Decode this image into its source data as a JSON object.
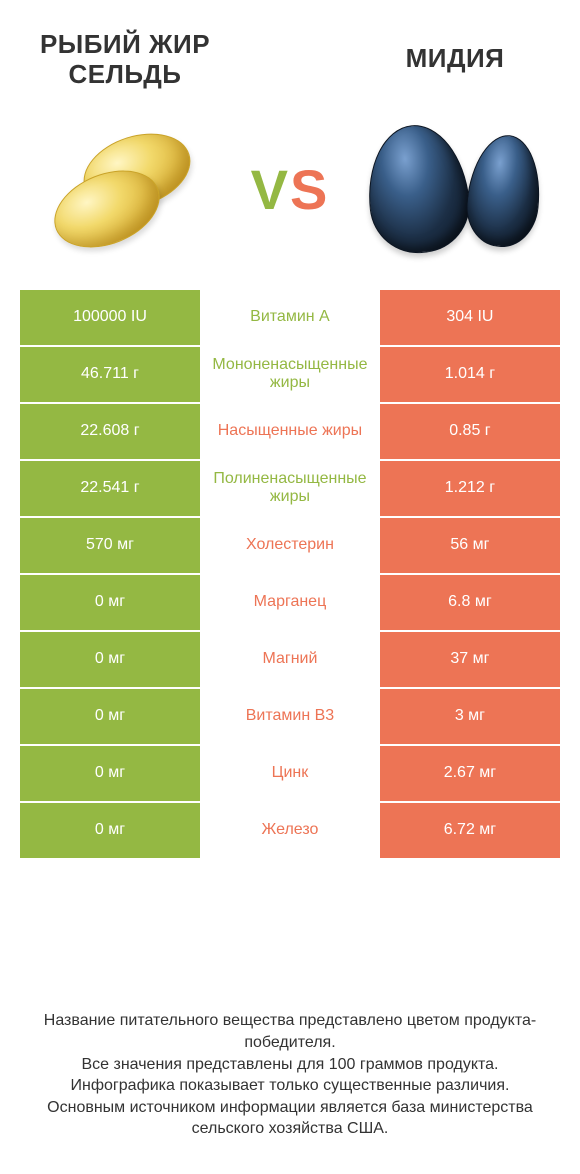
{
  "colors": {
    "green": "#94b843",
    "orange": "#ed7455",
    "text": "#333333",
    "white": "#ffffff"
  },
  "header": {
    "left_line1": "РЫБИЙ ЖИР",
    "left_line2": "СЕЛЬДЬ",
    "right": "МИДИЯ"
  },
  "vs": {
    "v": "V",
    "s": "S"
  },
  "rows": [
    {
      "left": "100000 IU",
      "name": "Витамин A",
      "right": "304 IU",
      "winner": "left"
    },
    {
      "left": "46.711 г",
      "name": "Мононенасыщенные жиры",
      "right": "1.014 г",
      "winner": "left"
    },
    {
      "left": "22.608 г",
      "name": "Насыщенные жиры",
      "right": "0.85 г",
      "winner": "right"
    },
    {
      "left": "22.541 г",
      "name": "Полиненасыщенные жиры",
      "right": "1.212 г",
      "winner": "left"
    },
    {
      "left": "570 мг",
      "name": "Холестерин",
      "right": "56 мг",
      "winner": "right"
    },
    {
      "left": "0 мг",
      "name": "Марганец",
      "right": "6.8 мг",
      "winner": "right"
    },
    {
      "left": "0 мг",
      "name": "Магний",
      "right": "37 мг",
      "winner": "right"
    },
    {
      "left": "0 мг",
      "name": "Витамин B3",
      "right": "3 мг",
      "winner": "right"
    },
    {
      "left": "0 мг",
      "name": "Цинк",
      "right": "2.67 мг",
      "winner": "right"
    },
    {
      "left": "0 мг",
      "name": "Железо",
      "right": "6.72 мг",
      "winner": "right"
    }
  ],
  "footer": {
    "l1": "Название питательного вещества представлено цветом продукта-победителя.",
    "l2": "Все значения представлены для 100 граммов продукта.",
    "l3": "Инфографика показывает только существенные различия.",
    "l4": "Основным источником информации является база министерства сельского хозяйства США."
  }
}
